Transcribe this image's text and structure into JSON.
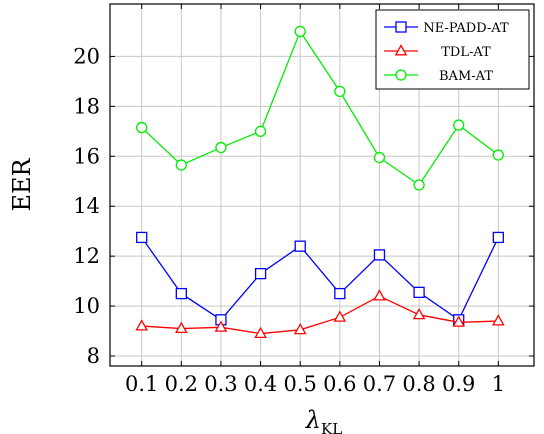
{
  "chart_data": {
    "type": "line",
    "title": "",
    "xlabel": "λ",
    "xlabel_sub": "KL",
    "ylabel": "EER",
    "x": [
      0.1,
      0.2,
      0.3,
      0.4,
      0.5,
      0.6,
      0.7,
      0.8,
      0.9,
      1
    ],
    "x_tick_labels": [
      "0.1",
      "0.2",
      "0.3",
      "0.4",
      "0.5",
      "0.6",
      "0.7",
      "0.8",
      "0.9",
      "1"
    ],
    "y_ticks": [
      8,
      10,
      12,
      14,
      16,
      18,
      20
    ],
    "xlim": [
      0.02,
      1.09
    ],
    "ylim": [
      7.6,
      22.1
    ],
    "grid": true,
    "legend_position": "top-right",
    "series": [
      {
        "name": "NE-PADD-AT",
        "color": "#0000ff",
        "marker": "square",
        "values": [
          12.75,
          10.5,
          9.45,
          11.3,
          12.4,
          10.5,
          12.05,
          10.55,
          9.45,
          12.75
        ]
      },
      {
        "name": "TDL-AT",
        "color": "#ff0000",
        "marker": "triangle",
        "values": [
          9.2,
          9.1,
          9.15,
          8.9,
          9.05,
          9.55,
          10.4,
          9.65,
          9.35,
          9.4
        ]
      },
      {
        "name": "BAM-AT",
        "color": "#00ee00",
        "marker": "circle",
        "values": [
          17.15,
          15.65,
          16.35,
          17.0,
          21.0,
          18.6,
          15.95,
          14.85,
          17.25,
          16.05
        ]
      }
    ]
  }
}
